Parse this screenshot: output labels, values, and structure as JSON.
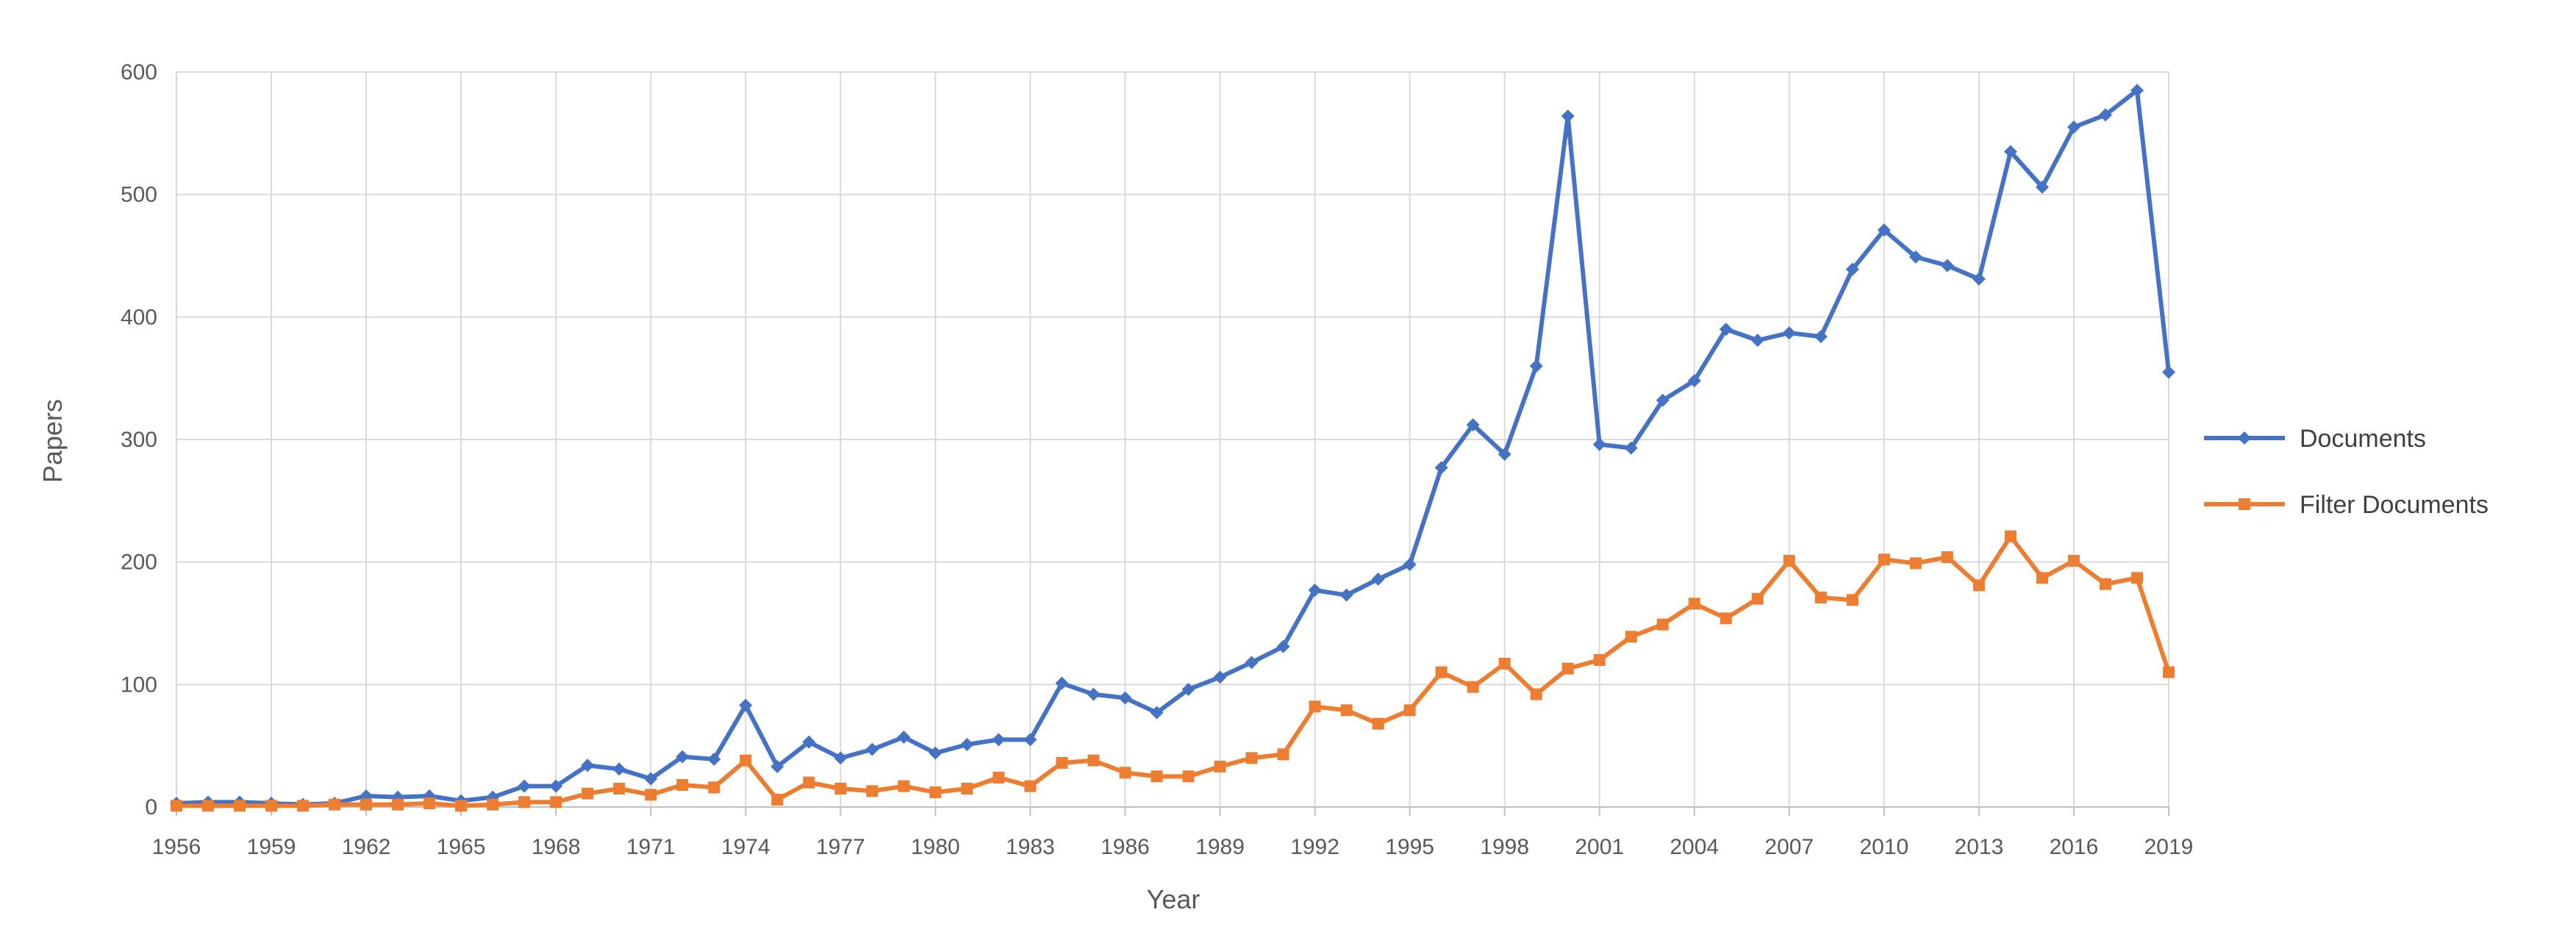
{
  "chart_data": {
    "type": "line",
    "xlabel": "Year",
    "ylabel": "Papers",
    "ylim": [
      0,
      600
    ],
    "yticks": [
      0,
      100,
      200,
      300,
      400,
      500,
      600
    ],
    "x": [
      1956,
      1957,
      1958,
      1959,
      1960,
      1961,
      1962,
      1963,
      1964,
      1965,
      1966,
      1967,
      1968,
      1969,
      1970,
      1971,
      1972,
      1973,
      1974,
      1975,
      1976,
      1977,
      1978,
      1979,
      1980,
      1981,
      1982,
      1983,
      1984,
      1985,
      1986,
      1987,
      1988,
      1989,
      1990,
      1991,
      1992,
      1993,
      1994,
      1995,
      1996,
      1997,
      1998,
      1999,
      2000,
      2001,
      2002,
      2003,
      2004,
      2005,
      2006,
      2007,
      2008,
      2009,
      2010,
      2011,
      2012,
      2013,
      2014,
      2015,
      2016,
      2017,
      2018,
      2019
    ],
    "xticks": [
      1956,
      1959,
      1962,
      1965,
      1968,
      1971,
      1974,
      1977,
      1980,
      1983,
      1986,
      1989,
      1992,
      1995,
      1998,
      2001,
      2004,
      2007,
      2010,
      2013,
      2016,
      2019
    ],
    "grid": true,
    "legend_position": "right",
    "series": [
      {
        "name": "Documents",
        "color": "#4472C4",
        "marker": "diamond",
        "values": [
          3,
          4,
          4,
          3,
          2,
          3,
          9,
          8,
          9,
          5,
          8,
          17,
          17,
          34,
          31,
          23,
          41,
          39,
          83,
          33,
          53,
          40,
          47,
          57,
          44,
          51,
          55,
          55,
          101,
          92,
          89,
          77,
          96,
          106,
          118,
          131,
          177,
          173,
          186,
          198,
          277,
          312,
          288,
          360,
          564,
          296,
          293,
          332,
          348,
          390,
          381,
          387,
          384,
          439,
          471,
          449,
          442,
          431,
          535,
          506,
          555,
          565,
          585,
          355
        ]
      },
      {
        "name": "Filter Documents",
        "color": "#ED7D31",
        "marker": "square",
        "values": [
          1,
          1,
          1,
          1,
          1,
          2,
          2,
          2,
          3,
          1,
          2,
          4,
          4,
          11,
          15,
          10,
          18,
          16,
          38,
          6,
          20,
          15,
          13,
          17,
          12,
          15,
          24,
          17,
          36,
          38,
          28,
          25,
          25,
          33,
          40,
          43,
          82,
          79,
          68,
          79,
          110,
          98,
          117,
          92,
          113,
          120,
          139,
          149,
          166,
          154,
          170,
          201,
          171,
          169,
          202,
          199,
          204,
          181,
          221,
          187,
          201,
          182,
          187,
          110
        ]
      }
    ]
  }
}
